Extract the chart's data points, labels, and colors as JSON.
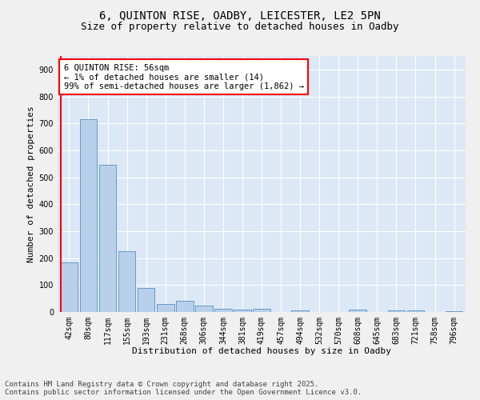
{
  "title_line1": "6, QUINTON RISE, OADBY, LEICESTER, LE2 5PN",
  "title_line2": "Size of property relative to detached houses in Oadby",
  "xlabel": "Distribution of detached houses by size in Oadby",
  "ylabel": "Number of detached properties",
  "bar_color": "#b8d0ea",
  "bar_edge_color": "#6699cc",
  "background_color": "#dce8f5",
  "fig_background_color": "#f0f0f0",
  "categories": [
    "42sqm",
    "80sqm",
    "117sqm",
    "155sqm",
    "193sqm",
    "231sqm",
    "268sqm",
    "306sqm",
    "344sqm",
    "381sqm",
    "419sqm",
    "457sqm",
    "494sqm",
    "532sqm",
    "570sqm",
    "608sqm",
    "645sqm",
    "683sqm",
    "721sqm",
    "758sqm",
    "796sqm"
  ],
  "values": [
    185,
    715,
    545,
    225,
    88,
    30,
    42,
    25,
    12,
    8,
    12,
    0,
    5,
    0,
    0,
    8,
    0,
    5,
    5,
    0,
    2
  ],
  "ylim": [
    0,
    950
  ],
  "yticks": [
    0,
    100,
    200,
    300,
    400,
    500,
    600,
    700,
    800,
    900
  ],
  "annotation_title": "6 QUINTON RISE: 56sqm",
  "annotation_line1": "← 1% of detached houses are smaller (14)",
  "annotation_line2": "99% of semi-detached houses are larger (1,862) →",
  "footer_line1": "Contains HM Land Registry data © Crown copyright and database right 2025.",
  "footer_line2": "Contains public sector information licensed under the Open Government Licence v3.0.",
  "grid_color": "#ffffff",
  "title_fontsize": 10,
  "subtitle_fontsize": 9,
  "axis_label_fontsize": 8,
  "tick_fontsize": 7,
  "annotation_fontsize": 7.5,
  "footer_fontsize": 6.5
}
